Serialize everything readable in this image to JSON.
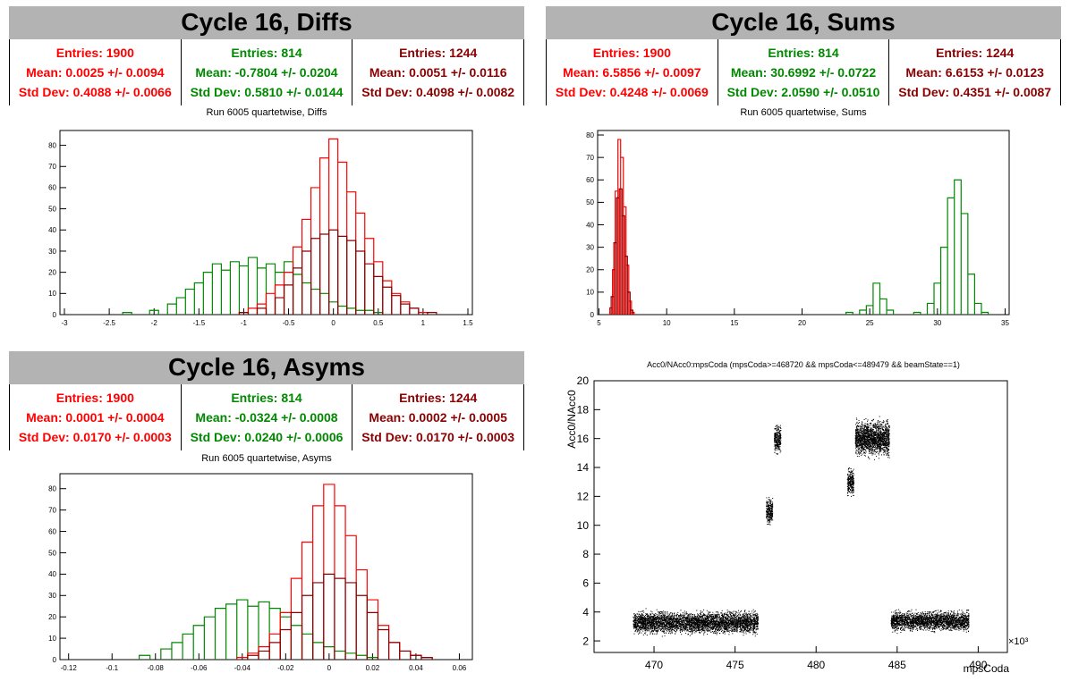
{
  "colors": {
    "red": "#ff0000",
    "green": "#008800",
    "darkred": "#8b0000"
  },
  "panels": {
    "diffs": {
      "title": "Cycle 16, Diffs",
      "subtitle": "Run 6005 quartetwise, Diffs",
      "stats": [
        {
          "entries": "Entries: 1900",
          "mean": "Mean: 0.0025 +/- 0.0094",
          "std": "Std Dev: 0.4088 +/- 0.0066"
        },
        {
          "entries": "Entries: 814",
          "mean": "Mean: -0.7804 +/- 0.0204",
          "std": "Std Dev: 0.5810 +/- 0.0144"
        },
        {
          "entries": "Entries: 1244",
          "mean": "Mean: 0.0051 +/- 0.0116",
          "std": "Std Dev: 0.4098 +/- 0.0082"
        }
      ]
    },
    "sums": {
      "title": "Cycle 16, Sums",
      "subtitle": "Run 6005 quartetwise, Sums",
      "stats": [
        {
          "entries": "Entries: 1900",
          "mean": "Mean: 6.5856 +/- 0.0097",
          "std": "Std Dev: 0.4248 +/- 0.0069"
        },
        {
          "entries": "Entries: 814",
          "mean": "Mean: 30.6992 +/- 0.0722",
          "std": "Std Dev: 2.0590 +/- 0.0510"
        },
        {
          "entries": "Entries: 1244",
          "mean": "Mean: 6.6153 +/- 0.0123",
          "std": "Std Dev: 0.4351 +/- 0.0087"
        }
      ]
    },
    "asyms": {
      "title": "Cycle 16, Asyms",
      "subtitle": "Run 6005 quartetwise, Asyms",
      "stats": [
        {
          "entries": "Entries: 1900",
          "mean": "Mean: 0.0001 +/- 0.0004",
          "std": "Std Dev: 0.0170 +/- 0.0003"
        },
        {
          "entries": "Entries: 814",
          "mean": "Mean: -0.0324 +/- 0.0008",
          "std": "Std Dev: 0.0240 +/- 0.0006"
        },
        {
          "entries": "Entries: 1244",
          "mean": "Mean: 0.0002 +/- 0.0005",
          "std": "Std Dev: 0.0170 +/- 0.0003"
        }
      ]
    }
  },
  "chart_data": [
    {
      "id": "diffs",
      "type": "histogram",
      "xlim": [
        -3.05,
        1.55
      ],
      "ylim": [
        0,
        87
      ],
      "xticks": [
        -3,
        -2.5,
        -2,
        -1.5,
        -1,
        -0.5,
        0,
        0.5,
        1,
        1.5
      ],
      "xtick_labels": [
        "-3",
        "-2.5",
        "-2",
        "-1.5",
        "-1",
        "-0.5",
        "0",
        "0.5",
        "1",
        "1.5"
      ],
      "yticks": [
        0,
        10,
        20,
        30,
        40,
        50,
        60,
        70,
        80
      ],
      "ytick_labels": [
        "0",
        "10",
        "20",
        "30",
        "40",
        "50",
        "60",
        "70",
        "80"
      ],
      "grid": false,
      "series": [
        {
          "color": "green",
          "bins": [
            [
              -2.3,
              1
            ],
            [
              -2.0,
              2
            ],
            [
              -1.8,
              5
            ],
            [
              -1.7,
              8
            ],
            [
              -1.6,
              12
            ],
            [
              -1.5,
              15
            ],
            [
              -1.4,
              20
            ],
            [
              -1.3,
              24
            ],
            [
              -1.2,
              21
            ],
            [
              -1.1,
              25
            ],
            [
              -1.0,
              23
            ],
            [
              -0.9,
              27
            ],
            [
              -0.8,
              22
            ],
            [
              -0.7,
              24
            ],
            [
              -0.6,
              20
            ],
            [
              -0.5,
              25
            ],
            [
              -0.4,
              19
            ],
            [
              -0.3,
              15
            ],
            [
              -0.2,
              12
            ],
            [
              -0.1,
              10
            ],
            [
              0.0,
              6
            ],
            [
              0.1,
              4
            ],
            [
              0.2,
              3
            ],
            [
              0.3,
              2
            ],
            [
              0.4,
              2
            ],
            [
              0.5,
              1
            ]
          ]
        },
        {
          "color": "red",
          "bins": [
            [
              -1.0,
              1
            ],
            [
              -0.9,
              3
            ],
            [
              -0.8,
              5
            ],
            [
              -0.7,
              10
            ],
            [
              -0.6,
              14
            ],
            [
              -0.5,
              20
            ],
            [
              -0.4,
              32
            ],
            [
              -0.3,
              45
            ],
            [
              -0.2,
              60
            ],
            [
              -0.1,
              74
            ],
            [
              0.0,
              83
            ],
            [
              0.1,
              72
            ],
            [
              0.2,
              58
            ],
            [
              0.3,
              48
            ],
            [
              0.4,
              36
            ],
            [
              0.5,
              25
            ],
            [
              0.6,
              16
            ],
            [
              0.7,
              10
            ],
            [
              0.8,
              6
            ],
            [
              0.9,
              3
            ],
            [
              1.0,
              1
            ]
          ]
        },
        {
          "color": "darkred",
          "bins": [
            [
              -1.0,
              1
            ],
            [
              -0.8,
              3
            ],
            [
              -0.6,
              8
            ],
            [
              -0.5,
              14
            ],
            [
              -0.4,
              22
            ],
            [
              -0.3,
              30
            ],
            [
              -0.2,
              36
            ],
            [
              -0.1,
              38
            ],
            [
              0.0,
              40
            ],
            [
              0.1,
              37
            ],
            [
              0.2,
              35
            ],
            [
              0.3,
              30
            ],
            [
              0.4,
              24
            ],
            [
              0.5,
              18
            ],
            [
              0.6,
              13
            ],
            [
              0.7,
              9
            ],
            [
              0.8,
              5
            ],
            [
              0.9,
              3
            ],
            [
              1.1,
              1
            ]
          ]
        }
      ]
    },
    {
      "id": "sums",
      "type": "histogram",
      "xlim": [
        4.9,
        35.3
      ],
      "ylim": [
        0,
        82
      ],
      "xticks": [
        5,
        10,
        15,
        20,
        25,
        30,
        35
      ],
      "xtick_labels": [
        "5",
        "10",
        "15",
        "20",
        "25",
        "30",
        "35"
      ],
      "yticks": [
        0,
        10,
        20,
        30,
        40,
        50,
        60,
        70,
        80
      ],
      "ytick_labels": [
        "0",
        "10",
        "20",
        "30",
        "40",
        "50",
        "60",
        "70",
        "80"
      ],
      "grid": false,
      "series": [
        {
          "color": "green",
          "bins": [
            [
              23.5,
              1
            ],
            [
              24.5,
              2
            ],
            [
              25.0,
              4
            ],
            [
              25.5,
              14
            ],
            [
              26.0,
              7
            ],
            [
              26.5,
              2
            ],
            [
              28.5,
              1
            ],
            [
              29.5,
              5
            ],
            [
              30.0,
              14
            ],
            [
              30.5,
              30
            ],
            [
              31.0,
              52
            ],
            [
              31.5,
              60
            ],
            [
              32.0,
              45
            ],
            [
              32.5,
              18
            ],
            [
              33.0,
              5
            ],
            [
              33.5,
              1
            ]
          ]
        },
        {
          "color": "red",
          "bins": [
            [
              5.9,
              3
            ],
            [
              6.1,
              20
            ],
            [
              6.3,
              55
            ],
            [
              6.5,
              78
            ],
            [
              6.7,
              70
            ],
            [
              6.9,
              48
            ],
            [
              7.1,
              22
            ],
            [
              7.3,
              6
            ],
            [
              7.5,
              1
            ]
          ]
        },
        {
          "color": "darkred",
          "bins": [
            [
              6.0,
              8
            ],
            [
              6.2,
              32
            ],
            [
              6.4,
              52
            ],
            [
              6.6,
              56
            ],
            [
              6.8,
              44
            ],
            [
              7.0,
              26
            ],
            [
              7.2,
              10
            ],
            [
              7.4,
              2
            ]
          ]
        }
      ]
    },
    {
      "id": "asyms",
      "type": "histogram",
      "xlim": [
        -0.124,
        0.066
      ],
      "ylim": [
        0,
        87
      ],
      "xticks": [
        -0.12,
        -0.1,
        -0.08,
        -0.06,
        -0.04,
        -0.02,
        0,
        0.02,
        0.04,
        0.06
      ],
      "xtick_labels": [
        "-0.12",
        "-0.1",
        "-0.08",
        "-0.06",
        "-0.04",
        "-0.02",
        "0",
        "0.02",
        "0.04",
        "0.06"
      ],
      "yticks": [
        0,
        10,
        20,
        30,
        40,
        50,
        60,
        70,
        80
      ],
      "ytick_labels": [
        "0",
        "10",
        "20",
        "30",
        "40",
        "50",
        "60",
        "70",
        "80"
      ],
      "grid": false,
      "series": [
        {
          "color": "green",
          "bins": [
            [
              -0.085,
              2
            ],
            [
              -0.075,
              5
            ],
            [
              -0.07,
              8
            ],
            [
              -0.065,
              12
            ],
            [
              -0.06,
              16
            ],
            [
              -0.055,
              20
            ],
            [
              -0.05,
              24
            ],
            [
              -0.045,
              26
            ],
            [
              -0.04,
              28
            ],
            [
              -0.035,
              25
            ],
            [
              -0.03,
              27
            ],
            [
              -0.025,
              24
            ],
            [
              -0.02,
              20
            ],
            [
              -0.015,
              16
            ],
            [
              -0.01,
              12
            ],
            [
              -0.005,
              8
            ],
            [
              0.0,
              6
            ],
            [
              0.005,
              4
            ],
            [
              0.01,
              3
            ],
            [
              0.015,
              2
            ],
            [
              0.02,
              1
            ]
          ]
        },
        {
          "color": "red",
          "bins": [
            [
              -0.04,
              1
            ],
            [
              -0.035,
              3
            ],
            [
              -0.03,
              6
            ],
            [
              -0.025,
              12
            ],
            [
              -0.02,
              22
            ],
            [
              -0.015,
              38
            ],
            [
              -0.01,
              55
            ],
            [
              -0.005,
              72
            ],
            [
              0.0,
              82
            ],
            [
              0.005,
              72
            ],
            [
              0.01,
              58
            ],
            [
              0.015,
              42
            ],
            [
              0.02,
              28
            ],
            [
              0.025,
              16
            ],
            [
              0.03,
              8
            ],
            [
              0.035,
              4
            ],
            [
              0.04,
              2
            ],
            [
              0.045,
              1
            ]
          ]
        },
        {
          "color": "darkred",
          "bins": [
            [
              -0.035,
              2
            ],
            [
              -0.03,
              4
            ],
            [
              -0.025,
              8
            ],
            [
              -0.02,
              14
            ],
            [
              -0.015,
              22
            ],
            [
              -0.01,
              30
            ],
            [
              -0.005,
              36
            ],
            [
              0.0,
              40
            ],
            [
              0.005,
              38
            ],
            [
              0.01,
              36
            ],
            [
              0.015,
              30
            ],
            [
              0.02,
              22
            ],
            [
              0.025,
              14
            ],
            [
              0.03,
              8
            ],
            [
              0.035,
              4
            ],
            [
              0.04,
              2
            ],
            [
              0.045,
              1
            ]
          ]
        }
      ]
    },
    {
      "id": "scatter",
      "type": "scatter",
      "title": "Acc0/NAcc0:mpsCoda (mpsCoda>=468720 && mpsCoda<=489479 && beamState==1)",
      "xlabel": "mpsCoda",
      "ylabel": "Acc0/NAcc0",
      "xlim": [
        466.3,
        491.8
      ],
      "ylim": [
        1.2,
        20
      ],
      "xticks": [
        470,
        475,
        480,
        485,
        490
      ],
      "xtick_labels": [
        "470",
        "475",
        "480",
        "485",
        "490"
      ],
      "yticks": [
        2,
        4,
        6,
        8,
        10,
        12,
        14,
        16,
        18,
        20
      ],
      "ytick_labels": [
        "2",
        "4",
        "6",
        "8",
        "10",
        "12",
        "14",
        "16",
        "18",
        "20"
      ],
      "x_multiplier": "×10³",
      "clusters": [
        {
          "x": [
            468.7,
            476.4
          ],
          "y": [
            2.3,
            4.3
          ]
        },
        {
          "x": [
            476.9,
            477.3
          ],
          "y": [
            9.8,
            12.2
          ]
        },
        {
          "x": [
            477.4,
            477.8
          ],
          "y": [
            14.7,
            17.3
          ]
        },
        {
          "x": [
            481.9,
            482.3
          ],
          "y": [
            11.8,
            14.2
          ]
        },
        {
          "x": [
            482.4,
            484.5
          ],
          "y": [
            14.5,
            17.6
          ]
        },
        {
          "x": [
            484.6,
            489.4
          ],
          "y": [
            2.5,
            4.3
          ]
        }
      ]
    }
  ]
}
